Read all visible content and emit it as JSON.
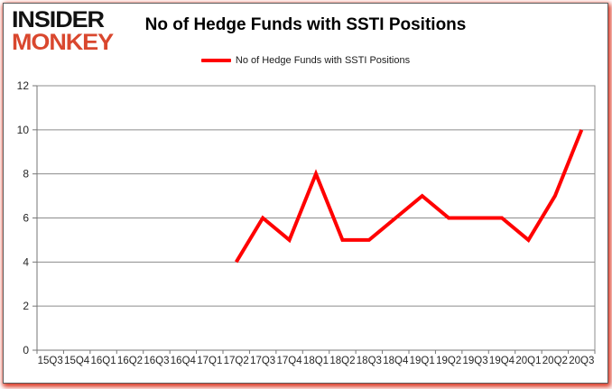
{
  "logo": {
    "line1": "INSIDER",
    "line2": "MONKEY"
  },
  "header": {
    "title": "No of Hedge Funds with SSTI Positions"
  },
  "legend": {
    "label": "No of Hedge Funds with SSTI Positions"
  },
  "colors": {
    "line": "#ff0000",
    "grid": "#8c8c8c",
    "axis": "#767676",
    "tick_text": "#262626",
    "logo_black": "#121212",
    "logo_red": "#d9472e",
    "background": "#ffffff"
  },
  "chart_data": {
    "type": "line",
    "title": "No of Hedge Funds with SSTI Positions",
    "categories": [
      "15Q3",
      "15Q4",
      "16Q1",
      "16Q2",
      "16Q3",
      "16Q4",
      "17Q1",
      "17Q2",
      "17Q3",
      "17Q4",
      "18Q1",
      "18Q2",
      "18Q3",
      "18Q4",
      "19Q1",
      "19Q2",
      "19Q3",
      "19Q4",
      "20Q1",
      "20Q2",
      "20Q3"
    ],
    "series": [
      {
        "name": "No of Hedge Funds with SSTI Positions",
        "color": "#ff0000",
        "values": [
          null,
          null,
          null,
          null,
          null,
          null,
          null,
          4,
          6,
          5,
          8,
          5,
          5,
          6,
          7,
          6,
          6,
          6,
          5,
          7,
          10
        ]
      }
    ],
    "xlabel": "",
    "ylabel": "",
    "ylim": [
      0,
      12
    ],
    "yticks": [
      0,
      2,
      4,
      6,
      8,
      10,
      12
    ],
    "grid": true,
    "legend_position": "top"
  }
}
